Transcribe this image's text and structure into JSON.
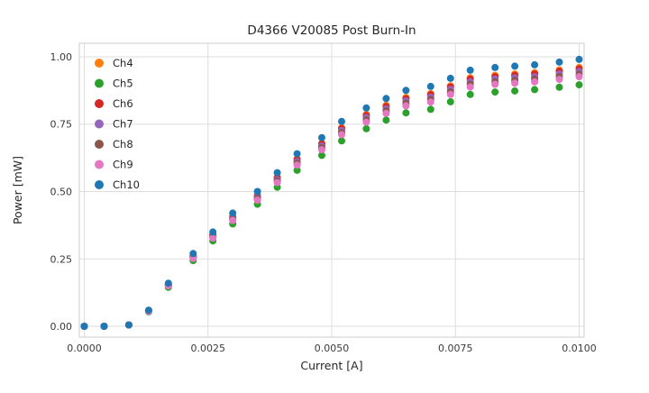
{
  "chart_data": {
    "type": "scatter",
    "title": "D4366 V20085 Post Burn-In",
    "xlabel": "Current [A]",
    "ylabel": "Power [mW]",
    "xlim": [
      -0.0001,
      0.0101
    ],
    "ylim": [
      -0.04,
      1.05
    ],
    "x_ticks": [
      0.0,
      0.0025,
      0.005,
      0.0075,
      0.01
    ],
    "x_tick_labels": [
      "0.0000",
      "0.0025",
      "0.0050",
      "0.0075",
      "0.0100"
    ],
    "y_ticks": [
      0.0,
      0.25,
      0.5,
      0.75,
      1.0
    ],
    "y_tick_labels": [
      "0.00",
      "0.25",
      "0.50",
      "0.75",
      "1.00"
    ],
    "grid": true,
    "legend_position": "upper-left",
    "x": [
      0.0,
      0.0004,
      0.0009,
      0.0013,
      0.0017,
      0.0022,
      0.0026,
      0.003,
      0.0035,
      0.0039,
      0.0043,
      0.0048,
      0.0052,
      0.0057,
      0.0061,
      0.0065,
      0.007,
      0.0074,
      0.0078,
      0.0083,
      0.0087,
      0.0091,
      0.0096,
      0.01
    ],
    "series": [
      {
        "name": "Ch4",
        "color": "#ff7f0e",
        "values": [
          0,
          0,
          0.005,
          0.058,
          0.155,
          0.262,
          0.34,
          0.407,
          0.485,
          0.553,
          0.621,
          0.679,
          0.737,
          0.786,
          0.82,
          0.849,
          0.863,
          0.892,
          0.922,
          0.931,
          0.936,
          0.941,
          0.951,
          0.96
        ]
      },
      {
        "name": "Ch5",
        "color": "#2ca02c",
        "values": [
          0,
          0,
          0.005,
          0.054,
          0.145,
          0.244,
          0.317,
          0.38,
          0.453,
          0.516,
          0.579,
          0.634,
          0.688,
          0.733,
          0.765,
          0.792,
          0.805,
          0.833,
          0.86,
          0.869,
          0.873,
          0.878,
          0.887,
          0.896
        ]
      },
      {
        "name": "Ch6",
        "color": "#d62728",
        "values": [
          0,
          0,
          0.005,
          0.058,
          0.154,
          0.261,
          0.338,
          0.405,
          0.483,
          0.55,
          0.618,
          0.676,
          0.733,
          0.782,
          0.815,
          0.844,
          0.859,
          0.888,
          0.917,
          0.926,
          0.931,
          0.936,
          0.946,
          0.955
        ]
      },
      {
        "name": "Ch7",
        "color": "#9467bd",
        "values": [
          0,
          0,
          0.005,
          0.057,
          0.153,
          0.258,
          0.334,
          0.401,
          0.478,
          0.544,
          0.611,
          0.669,
          0.726,
          0.774,
          0.807,
          0.836,
          0.85,
          0.879,
          0.907,
          0.917,
          0.922,
          0.926,
          0.936,
          0.945
        ]
      },
      {
        "name": "Ch8",
        "color": "#8c564b",
        "values": [
          0,
          0,
          0.005,
          0.057,
          0.151,
          0.255,
          0.331,
          0.397,
          0.473,
          0.539,
          0.605,
          0.662,
          0.718,
          0.765,
          0.799,
          0.827,
          0.841,
          0.869,
          0.898,
          0.907,
          0.912,
          0.917,
          0.926,
          0.935
        ]
      },
      {
        "name": "Ch9",
        "color": "#e377c2",
        "values": [
          0,
          0,
          0.005,
          0.056,
          0.15,
          0.252,
          0.327,
          0.393,
          0.468,
          0.533,
          0.598,
          0.655,
          0.711,
          0.757,
          0.79,
          0.818,
          0.832,
          0.86,
          0.888,
          0.898,
          0.902,
          0.907,
          0.916,
          0.926
        ]
      },
      {
        "name": "Ch10",
        "color": "#1f77b4",
        "values": [
          0,
          0,
          0.005,
          0.06,
          0.16,
          0.27,
          0.35,
          0.42,
          0.5,
          0.57,
          0.64,
          0.7,
          0.76,
          0.81,
          0.845,
          0.875,
          0.89,
          0.92,
          0.95,
          0.96,
          0.965,
          0.97,
          0.98,
          0.99
        ]
      }
    ],
    "style": {
      "grid_color": "#dddddd",
      "border_color": "#cccccc",
      "marker_radius": 4,
      "background": "#ffffff"
    }
  }
}
